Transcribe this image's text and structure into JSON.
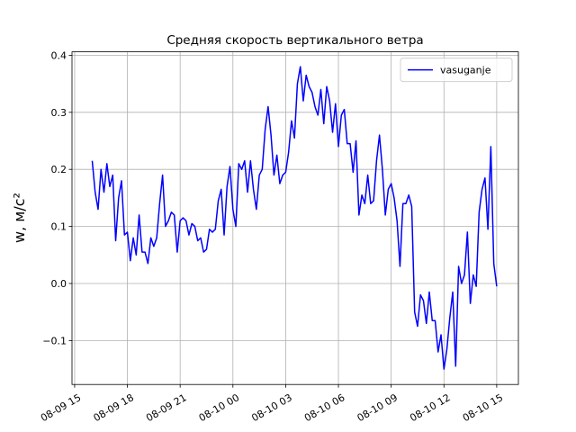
{
  "chart_data": {
    "type": "line",
    "title": "Средняя скорость вертикального ветра",
    "ylabel": "w, м/с²",
    "x": [
      "08-09 16:00",
      "08-09 16:10",
      "08-09 16:20",
      "08-09 16:30",
      "08-09 16:40",
      "08-09 16:50",
      "08-09 17:00",
      "08-09 17:10",
      "08-09 17:20",
      "08-09 17:30",
      "08-09 17:40",
      "08-09 17:50",
      "08-09 18:00",
      "08-09 18:10",
      "08-09 18:20",
      "08-09 18:30",
      "08-09 18:40",
      "08-09 18:50",
      "08-09 19:00",
      "08-09 19:10",
      "08-09 19:20",
      "08-09 19:30",
      "08-09 19:40",
      "08-09 19:50",
      "08-09 20:00",
      "08-09 20:10",
      "08-09 20:20",
      "08-09 20:30",
      "08-09 20:40",
      "08-09 20:50",
      "08-09 21:00",
      "08-09 21:10",
      "08-09 21:20",
      "08-09 21:30",
      "08-09 21:40",
      "08-09 21:50",
      "08-09 22:00",
      "08-09 22:10",
      "08-09 22:20",
      "08-09 22:30",
      "08-09 22:40",
      "08-09 22:50",
      "08-09 23:00",
      "08-09 23:10",
      "08-09 23:20",
      "08-09 23:30",
      "08-09 23:40",
      "08-09 23:50",
      "08-10 00:00",
      "08-10 00:10",
      "08-10 00:20",
      "08-10 00:30",
      "08-10 00:40",
      "08-10 00:50",
      "08-10 01:00",
      "08-10 01:10",
      "08-10 01:20",
      "08-10 01:30",
      "08-10 01:40",
      "08-10 01:50",
      "08-10 02:00",
      "08-10 02:10",
      "08-10 02:20",
      "08-10 02:30",
      "08-10 02:40",
      "08-10 02:50",
      "08-10 03:00",
      "08-10 03:10",
      "08-10 03:20",
      "08-10 03:30",
      "08-10 03:40",
      "08-10 03:50",
      "08-10 04:00",
      "08-10 04:10",
      "08-10 04:20",
      "08-10 04:30",
      "08-10 04:40",
      "08-10 04:50",
      "08-10 05:00",
      "08-10 05:10",
      "08-10 05:20",
      "08-10 05:30",
      "08-10 05:40",
      "08-10 05:50",
      "08-10 06:00",
      "08-10 06:10",
      "08-10 06:20",
      "08-10 06:30",
      "08-10 06:40",
      "08-10 06:50",
      "08-10 07:00",
      "08-10 07:10",
      "08-10 07:20",
      "08-10 07:30",
      "08-10 07:40",
      "08-10 07:50",
      "08-10 08:00",
      "08-10 08:10",
      "08-10 08:20",
      "08-10 08:30",
      "08-10 08:40",
      "08-10 08:50",
      "08-10 09:00",
      "08-10 09:10",
      "08-10 09:20",
      "08-10 09:30",
      "08-10 09:40",
      "08-10 09:50",
      "08-10 10:00",
      "08-10 10:10",
      "08-10 10:20",
      "08-10 10:30",
      "08-10 10:40",
      "08-10 10:50",
      "08-10 11:00",
      "08-10 11:10",
      "08-10 11:20",
      "08-10 11:30",
      "08-10 11:40",
      "08-10 11:50",
      "08-10 12:00",
      "08-10 12:10",
      "08-10 12:20",
      "08-10 12:30",
      "08-10 12:40",
      "08-10 12:50",
      "08-10 13:00",
      "08-10 13:10",
      "08-10 13:20",
      "08-10 13:30",
      "08-10 13:40",
      "08-10 13:50",
      "08-10 14:00",
      "08-10 14:10",
      "08-10 14:20",
      "08-10 14:30",
      "08-10 14:40",
      "08-10 14:50",
      "08-10 15:00"
    ],
    "series": [
      {
        "name": "vasuganje",
        "color": "#0000ff",
        "values": [
          0.215,
          0.16,
          0.13,
          0.2,
          0.16,
          0.21,
          0.17,
          0.19,
          0.075,
          0.15,
          0.18,
          0.085,
          0.09,
          0.04,
          0.08,
          0.05,
          0.12,
          0.055,
          0.055,
          0.035,
          0.08,
          0.065,
          0.08,
          0.14,
          0.19,
          0.1,
          0.11,
          0.125,
          0.12,
          0.055,
          0.11,
          0.115,
          0.11,
          0.085,
          0.105,
          0.1,
          0.075,
          0.08,
          0.055,
          0.06,
          0.095,
          0.09,
          0.095,
          0.145,
          0.165,
          0.085,
          0.17,
          0.205,
          0.13,
          0.1,
          0.21,
          0.2,
          0.215,
          0.16,
          0.215,
          0.165,
          0.13,
          0.19,
          0.2,
          0.27,
          0.31,
          0.26,
          0.19,
          0.225,
          0.175,
          0.19,
          0.195,
          0.23,
          0.285,
          0.255,
          0.35,
          0.38,
          0.32,
          0.365,
          0.345,
          0.335,
          0.31,
          0.295,
          0.34,
          0.28,
          0.345,
          0.32,
          0.265,
          0.315,
          0.24,
          0.295,
          0.305,
          0.245,
          0.245,
          0.195,
          0.25,
          0.12,
          0.155,
          0.14,
          0.19,
          0.14,
          0.145,
          0.215,
          0.26,
          0.2,
          0.12,
          0.165,
          0.175,
          0.15,
          0.11,
          0.03,
          0.14,
          0.14,
          0.155,
          0.135,
          -0.05,
          -0.075,
          -0.02,
          -0.03,
          -0.07,
          -0.015,
          -0.065,
          -0.065,
          -0.12,
          -0.09,
          -0.15,
          -0.115,
          -0.06,
          -0.015,
          -0.145,
          0.03,
          0.0,
          0.015,
          0.09,
          -0.035,
          0.015,
          -0.005,
          0.125,
          0.165,
          0.185,
          0.095,
          0.24,
          0.035,
          -0.005
        ]
      }
    ],
    "xlim": [
      "08-09 14:51",
      "08-10 16:14"
    ],
    "xticks": [
      "08-09 15",
      "08-09 18",
      "08-09 21",
      "08-10 00",
      "08-10 03",
      "08-10 06",
      "08-10 09",
      "08-10 12",
      "08-10 15"
    ],
    "ylim": [
      -0.177,
      0.406
    ],
    "yticks": [
      {
        "value": -0.1,
        "label": "−0.1"
      },
      {
        "value": 0,
        "label": "0.0"
      },
      0.1,
      0.2,
      0.3,
      0.4
    ],
    "grid": true,
    "legend": "upper right"
  }
}
